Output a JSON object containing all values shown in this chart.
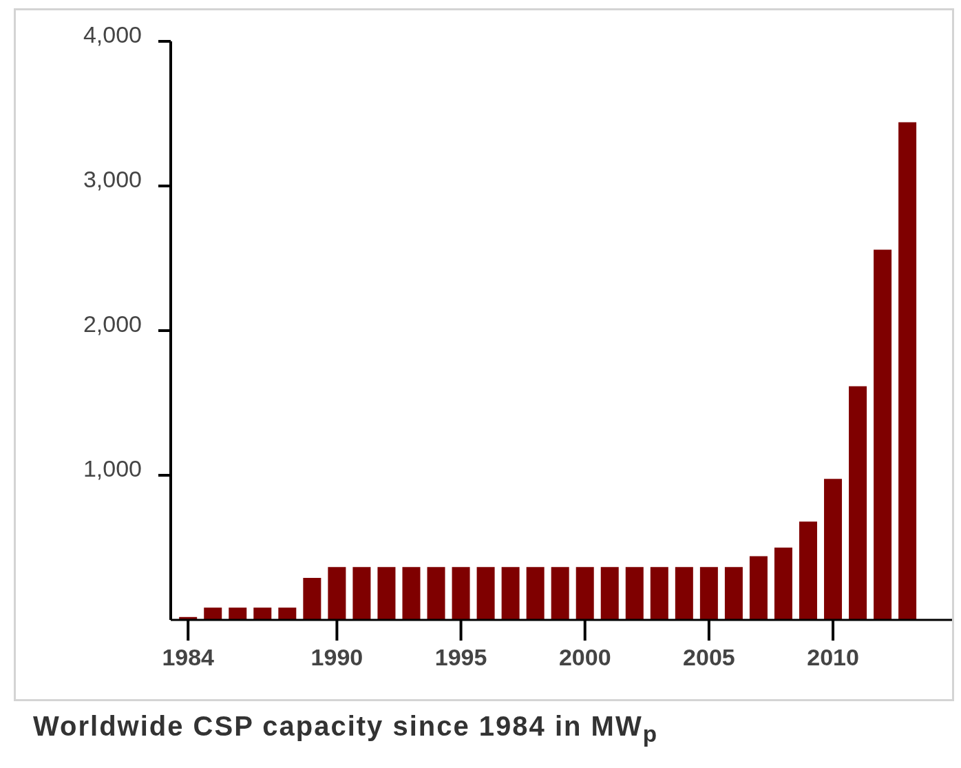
{
  "chart_data": {
    "type": "bar",
    "title": "Worldwide CSP capacity since 1984 in MW$_{p}$",
    "x": [
      1984,
      1985,
      1986,
      1987,
      1988,
      1989,
      1990,
      1991,
      1992,
      1993,
      1994,
      1995,
      1996,
      1997,
      1998,
      1999,
      2000,
      2001,
      2002,
      2003,
      2004,
      2005,
      2006,
      2007,
      2008,
      2009,
      2010,
      2011,
      2012,
      2013
    ],
    "values": [
      20,
      85,
      85,
      85,
      85,
      290,
      365,
      365,
      365,
      365,
      365,
      365,
      365,
      365,
      365,
      365,
      365,
      365,
      365,
      365,
      365,
      365,
      365,
      440,
      500,
      680,
      975,
      1615,
      2560,
      3440
    ],
    "color": "#7f0000",
    "xlim": [
      1983.3,
      2014.8
    ],
    "xticks": [
      1984,
      1990,
      1995,
      2000,
      2005,
      2010
    ],
    "ylim": [
      0,
      4000
    ],
    "yticks": [
      {
        "value": 1000,
        "label": "1,000"
      },
      {
        "value": 2000,
        "label": "2,000"
      },
      {
        "value": 3000,
        "label": "3,000"
      },
      {
        "value": 4000,
        "label": "4,000"
      }
    ],
    "grid": false,
    "legend": false
  }
}
